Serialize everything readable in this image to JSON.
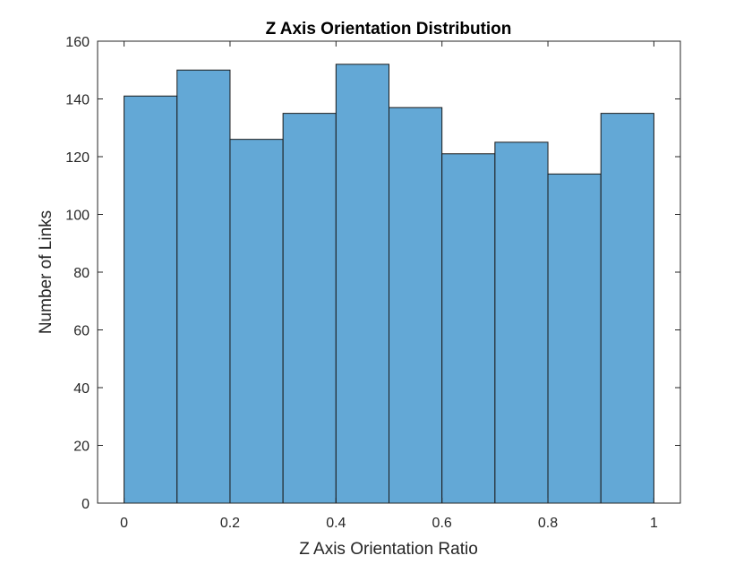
{
  "chart_data": {
    "type": "bar",
    "subtype": "histogram",
    "title": "Z Axis Orientation Distribution",
    "xlabel": "Z Axis Orientation Ratio",
    "ylabel": "Number of Links",
    "bin_edges": [
      0,
      0.1,
      0.2,
      0.3,
      0.4,
      0.5,
      0.6,
      0.7,
      0.8,
      0.9,
      1.0
    ],
    "values": [
      141,
      150,
      126,
      135,
      152,
      137,
      121,
      125,
      114,
      135
    ],
    "xlim": [
      -0.05,
      1.05
    ],
    "ylim": [
      0,
      160
    ],
    "xticks": [
      0,
      0.2,
      0.4,
      0.6,
      0.8,
      1
    ],
    "xtick_labels": [
      "0",
      "0.2",
      "0.4",
      "0.6",
      "0.8",
      "1"
    ],
    "yticks": [
      0,
      20,
      40,
      60,
      80,
      100,
      120,
      140,
      160
    ],
    "ytick_labels": [
      "0",
      "20",
      "40",
      "60",
      "80",
      "100",
      "120",
      "140",
      "160"
    ],
    "grid": false,
    "legend": "none",
    "colors": {
      "bar_fill": "#63a8d6",
      "bar_edge": "#1a1a1a",
      "axis": "#262626",
      "background": "#ffffff"
    }
  }
}
